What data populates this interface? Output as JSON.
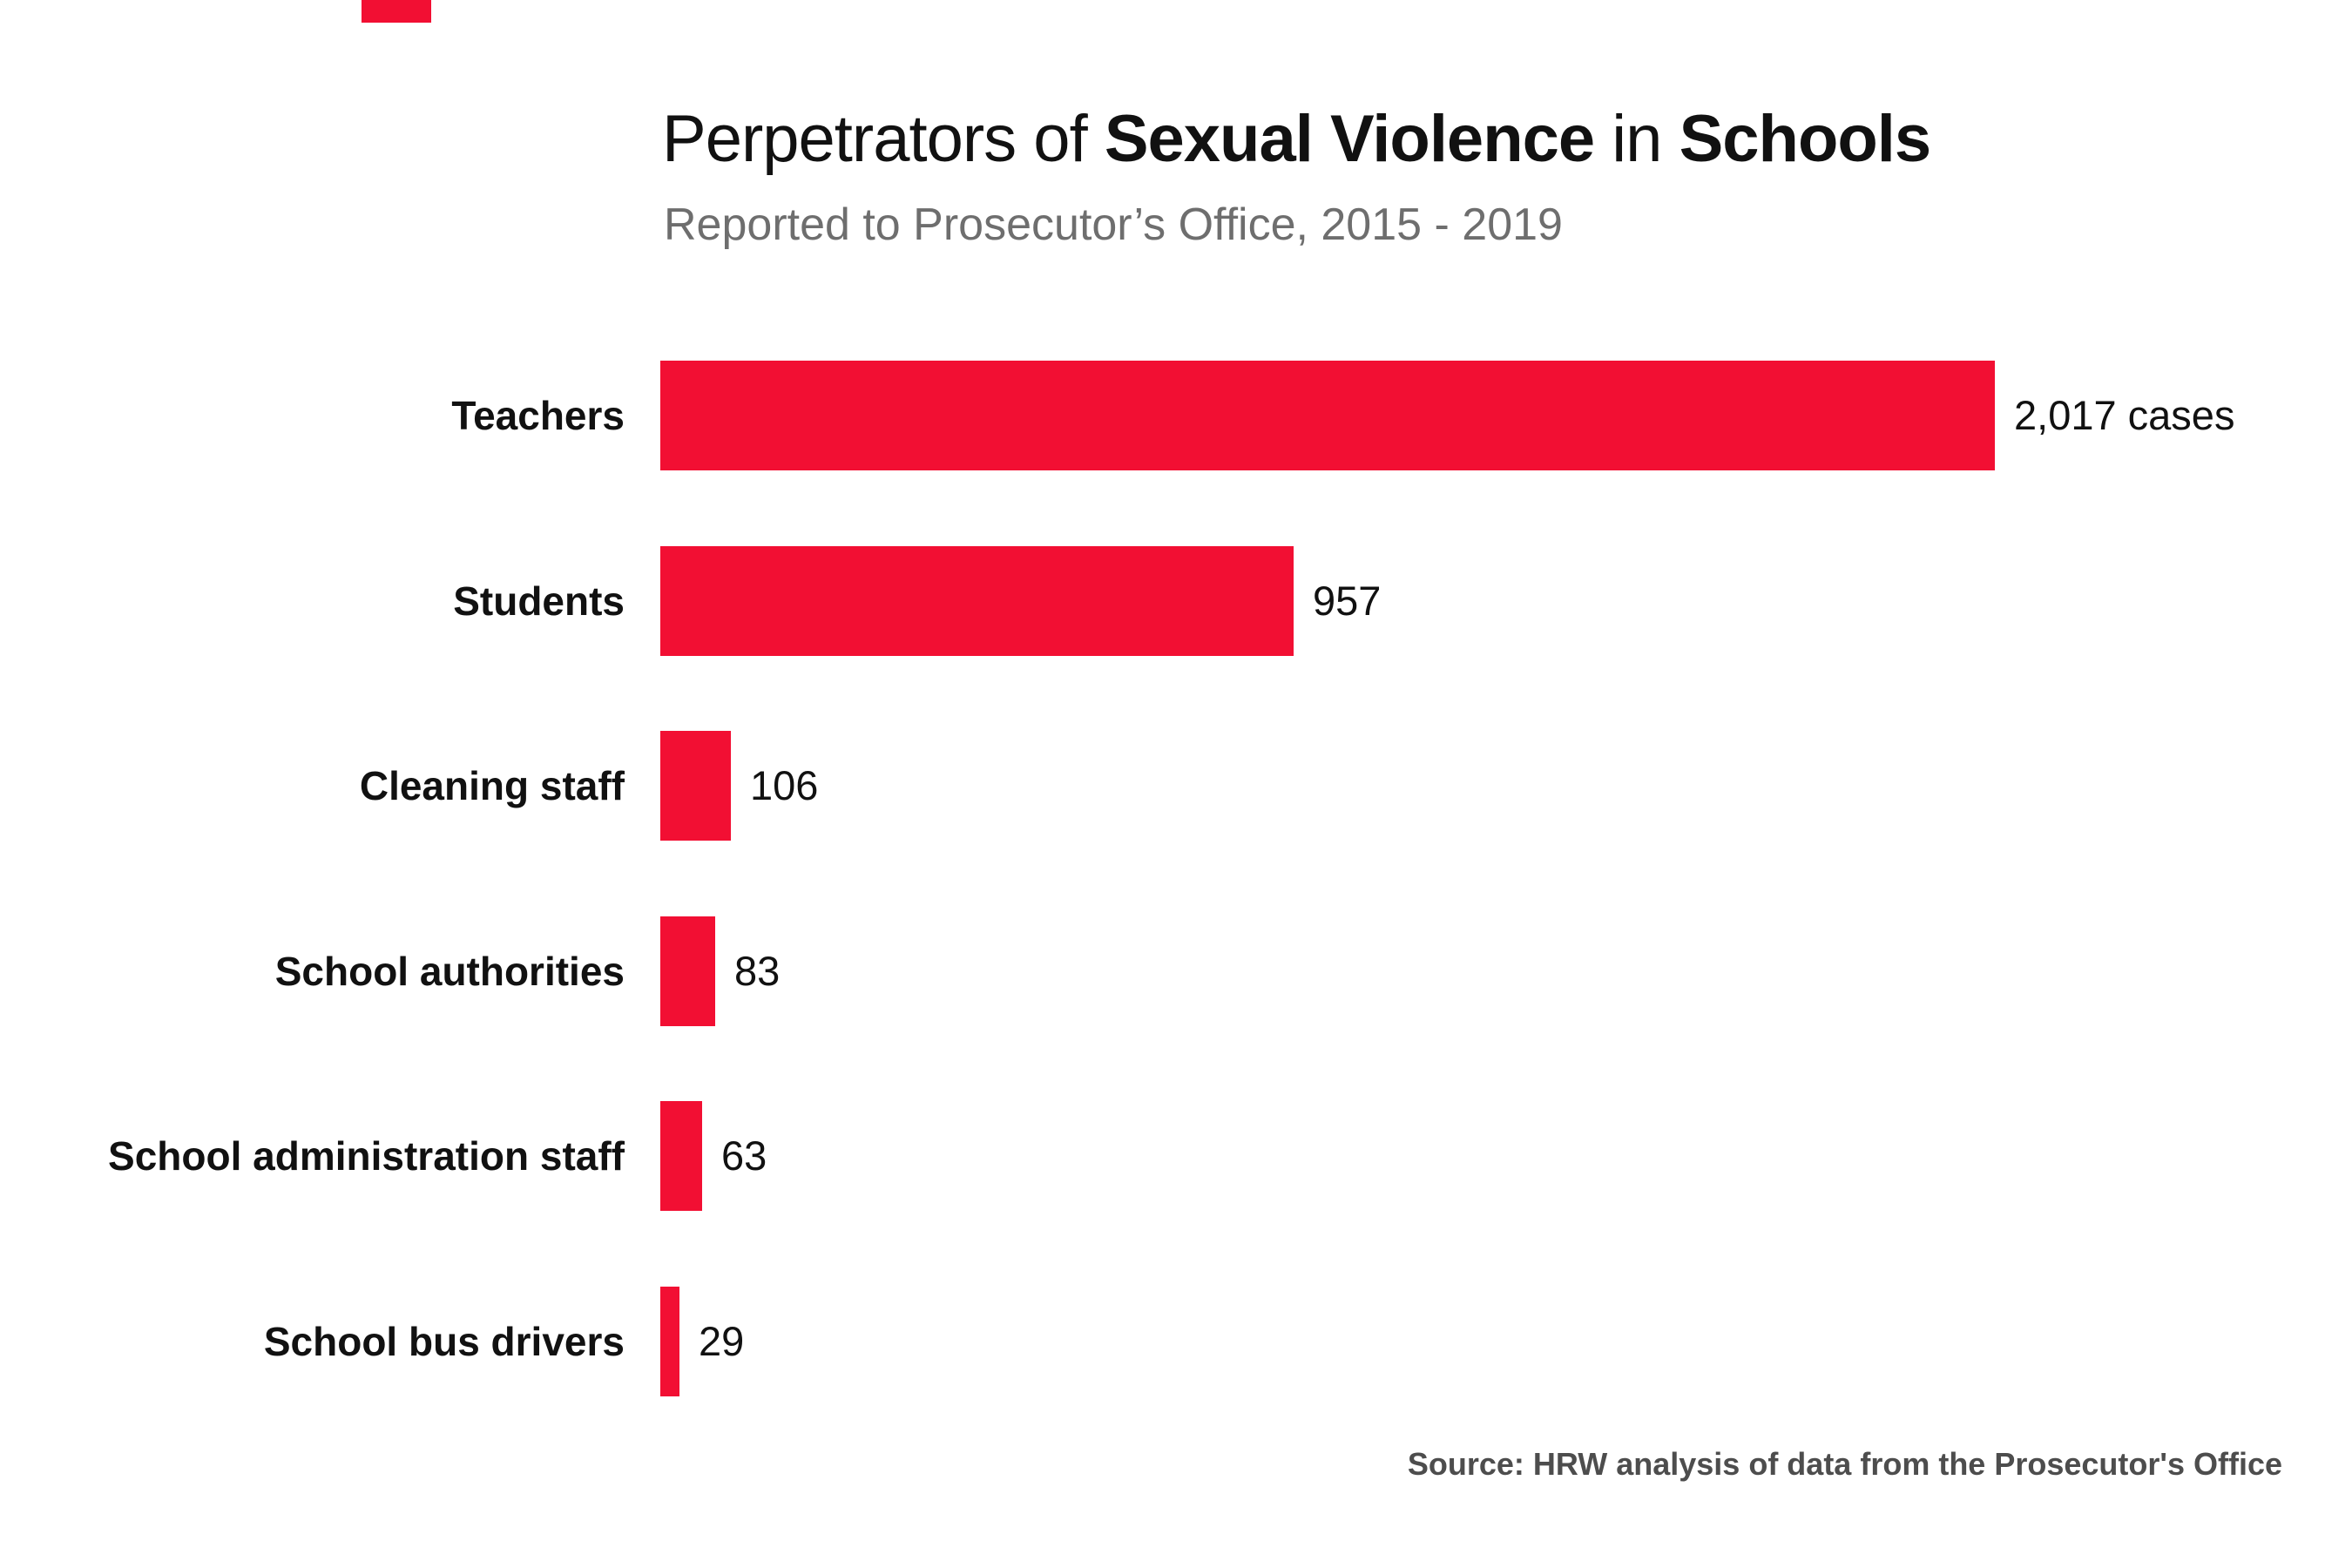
{
  "header": {
    "title_segments": [
      {
        "text": "Perpetrators of ",
        "bold": false
      },
      {
        "text": "Sexual Violence",
        "bold": true
      },
      {
        "text": " in ",
        "bold": false
      },
      {
        "text": "Schools",
        "bold": true
      }
    ],
    "title_plain": "Perpetrators of Sexual Violence in Schools",
    "subtitle": "Reported to Prosecutor’s Office, 2015 - 2019"
  },
  "chart_data": {
    "type": "bar",
    "orientation": "horizontal",
    "title": "Perpetrators of Sexual Violence in Schools",
    "subtitle": "Reported to Prosecutor’s Office, 2015 - 2019",
    "categories": [
      "Teachers",
      "Students",
      "Cleaning staff",
      "School authorities",
      "School administration staff",
      "School bus drivers"
    ],
    "values": [
      2017,
      957,
      106,
      83,
      63,
      29
    ],
    "value_labels": [
      "2,017 cases",
      "957",
      "106",
      "83",
      "63",
      "29"
    ],
    "xlabel": "",
    "ylabel": "",
    "xlim": [
      0,
      2017
    ],
    "grid": false,
    "legend": false,
    "sorted": "descending"
  },
  "source": "Source: HRW analysis of data from the Prosecutor's Office",
  "colors": {
    "bar": "#F20F33",
    "brand_tab": "#F20F33",
    "title": "#111111",
    "subtitle": "#6E6E6E",
    "label": "#111111",
    "value": "#111111",
    "source": "#4D4D4D"
  }
}
